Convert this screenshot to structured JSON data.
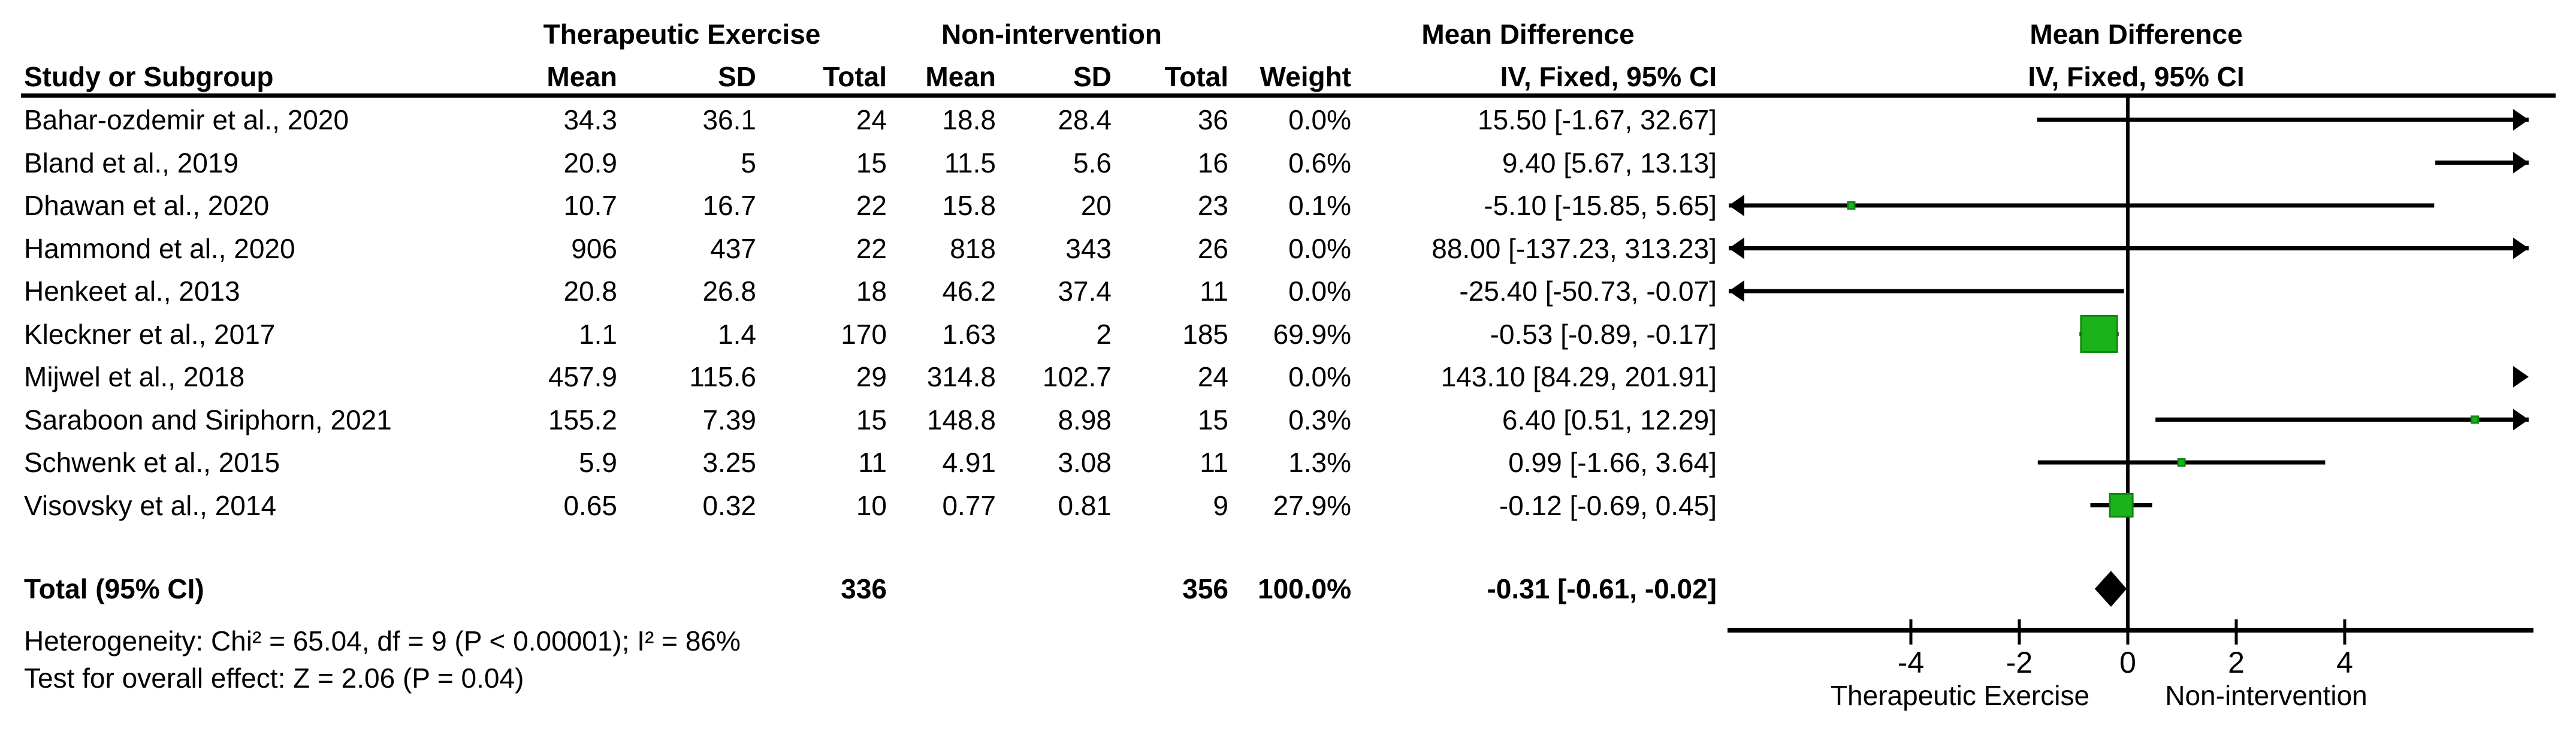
{
  "figure": {
    "groups": {
      "group1": "Therapeutic Exercise",
      "group2": "Non-intervention",
      "md": "Mean Difference",
      "md_plot": "Mean Difference"
    },
    "columns": {
      "study": "Study or Subgroup",
      "mean1": "Mean",
      "sd1": "SD",
      "total1": "Total",
      "mean2": "Mean",
      "sd2": "SD",
      "total2": "Total",
      "weight": "Weight",
      "ci": "IV, Fixed, 95% CI",
      "ci_plot": "IV, Fixed, 95% CI"
    },
    "rows": [
      {
        "study": "Bahar-ozdemir et al., 2020",
        "g1_mean": "34.3",
        "g1_sd": "36.1",
        "g1_total": "24",
        "g2_mean": "18.8",
        "g2_sd": "28.4",
        "g2_total": "36",
        "weight": "0.0%",
        "ci": "15.50 [-1.67, 32.67]"
      },
      {
        "study": "Bland et al., 2019",
        "g1_mean": "20.9",
        "g1_sd": "5",
        "g1_total": "15",
        "g2_mean": "11.5",
        "g2_sd": "5.6",
        "g2_total": "16",
        "weight": "0.6%",
        "ci": "9.40 [5.67, 13.13]"
      },
      {
        "study": "Dhawan et al., 2020",
        "g1_mean": "10.7",
        "g1_sd": "16.7",
        "g1_total": "22",
        "g2_mean": "15.8",
        "g2_sd": "20",
        "g2_total": "23",
        "weight": "0.1%",
        "ci": "-5.10 [-15.85, 5.65]"
      },
      {
        "study": "Hammond et al., 2020",
        "g1_mean": "906",
        "g1_sd": "437",
        "g1_total": "22",
        "g2_mean": "818",
        "g2_sd": "343",
        "g2_total": "26",
        "weight": "0.0%",
        "ci": "88.00 [-137.23, 313.23]"
      },
      {
        "study": "Henkeet al., 2013",
        "g1_mean": "20.8",
        "g1_sd": "26.8",
        "g1_total": "18",
        "g2_mean": "46.2",
        "g2_sd": "37.4",
        "g2_total": "11",
        "weight": "0.0%",
        "ci": "-25.40 [-50.73, -0.07]"
      },
      {
        "study": "Kleckner et al., 2017",
        "g1_mean": "1.1",
        "g1_sd": "1.4",
        "g1_total": "170",
        "g2_mean": "1.63",
        "g2_sd": "2",
        "g2_total": "185",
        "weight": "69.9%",
        "ci": "-0.53 [-0.89, -0.17]"
      },
      {
        "study": "Mijwel et al., 2018",
        "g1_mean": "457.9",
        "g1_sd": "115.6",
        "g1_total": "29",
        "g2_mean": "314.8",
        "g2_sd": "102.7",
        "g2_total": "24",
        "weight": "0.0%",
        "ci": "143.10 [84.29, 201.91]"
      },
      {
        "study": "Saraboon and Siriphorn, 2021",
        "g1_mean": "155.2",
        "g1_sd": "7.39",
        "g1_total": "15",
        "g2_mean": "148.8",
        "g2_sd": "8.98",
        "g2_total": "15",
        "weight": "0.3%",
        "ci": "6.40 [0.51, 12.29]"
      },
      {
        "study": "Schwenk et al., 2015",
        "g1_mean": "5.9",
        "g1_sd": "3.25",
        "g1_total": "11",
        "g2_mean": "4.91",
        "g2_sd": "3.08",
        "g2_total": "11",
        "weight": "1.3%",
        "ci": "0.99 [-1.66, 3.64]"
      },
      {
        "study": "Visovsky et al., 2014",
        "g1_mean": "0.65",
        "g1_sd": "0.32",
        "g1_total": "10",
        "g2_mean": "0.77",
        "g2_sd": "0.81",
        "g2_total": "9",
        "weight": "27.9%",
        "ci": "-0.12 [-0.69, 0.45]"
      }
    ],
    "total": {
      "label": "Total (95% CI)",
      "g1_total": "336",
      "g2_total": "356",
      "weight": "100.0%",
      "ci": "-0.31 [-0.61, -0.02]"
    },
    "footer": {
      "heterogeneity": "Heterogeneity: Chi² = 65.04, df = 9 (P < 0.00001); I² = 86%",
      "overall_effect": "Test for overall effect: Z = 2.06 (P = 0.04)"
    }
  },
  "chart_data": {
    "type": "scatter",
    "subtype": "forest-plot",
    "title": "Mean Difference",
    "subtitle": "IV, Fixed, 95% CI",
    "x_axis": {
      "ticks": [
        -4,
        -2,
        0,
        2,
        4
      ],
      "range_shown": [
        -7.4,
        7.4
      ],
      "left_label": "Therapeutic Exercise",
      "right_label": "Non-intervention",
      "zero_line": 0
    },
    "series": [
      {
        "name": "Bahar-ozdemir et al., 2020",
        "md": 15.5,
        "lo": -1.67,
        "hi": 32.67,
        "weight": 0.0
      },
      {
        "name": "Bland et al., 2019",
        "md": 9.4,
        "lo": 5.67,
        "hi": 13.13,
        "weight": 0.6
      },
      {
        "name": "Dhawan et al., 2020",
        "md": -5.1,
        "lo": -15.85,
        "hi": 5.65,
        "weight": 0.1
      },
      {
        "name": "Hammond et al., 2020",
        "md": 88.0,
        "lo": -137.23,
        "hi": 313.23,
        "weight": 0.0
      },
      {
        "name": "Henkeet al., 2013",
        "md": -25.4,
        "lo": -50.73,
        "hi": -0.07,
        "weight": 0.0
      },
      {
        "name": "Kleckner et al., 2017",
        "md": -0.53,
        "lo": -0.89,
        "hi": -0.17,
        "weight": 69.9
      },
      {
        "name": "Mijwel et al., 2018",
        "md": 143.1,
        "lo": 84.29,
        "hi": 201.91,
        "weight": 0.0
      },
      {
        "name": "Saraboon and Siriphorn, 2021",
        "md": 6.4,
        "lo": 0.51,
        "hi": 12.29,
        "weight": 0.3
      },
      {
        "name": "Schwenk et al., 2015",
        "md": 0.99,
        "lo": -1.66,
        "hi": 3.64,
        "weight": 1.3
      },
      {
        "name": "Visovsky et al., 2014",
        "md": -0.12,
        "lo": -0.69,
        "hi": 0.45,
        "weight": 27.9
      }
    ],
    "total": {
      "name": "Total (95% CI)",
      "md": -0.31,
      "lo": -0.61,
      "hi": -0.02
    },
    "legend_position": "none",
    "grid": false,
    "colors": {
      "marker_green": "#1cb21c",
      "marker_border": "#0d8a0d",
      "line_black": "#000000"
    }
  }
}
